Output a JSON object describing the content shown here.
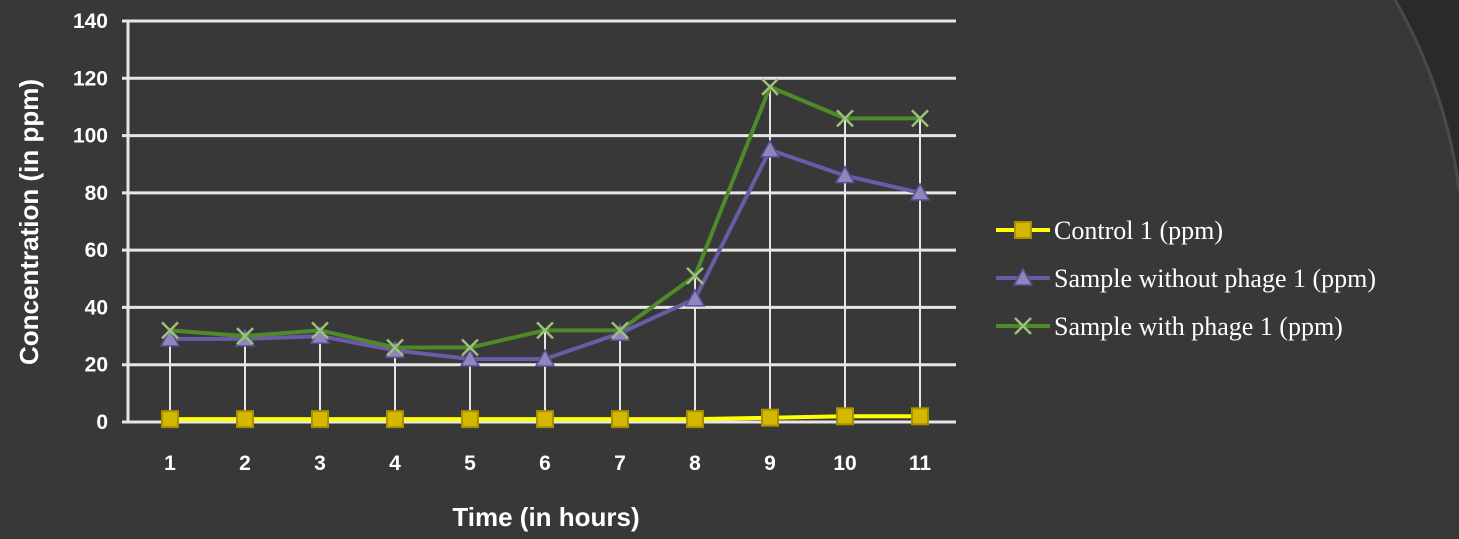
{
  "colors": {
    "background": "#383838",
    "gridline": "#e6e6e6",
    "control": "#ffff00",
    "control_marker": "#d4b800",
    "without_phage": "#6b5aa6",
    "without_phage_marker": "#8f86be",
    "with_phage": "#4f8a2a",
    "with_phage_marker": "#9cc27a",
    "text": "#ffffff"
  },
  "chart_data": {
    "type": "line",
    "xlabel": "Time (in hours)",
    "ylabel": "Concentration (in ppm)",
    "ylim": [
      0,
      140
    ],
    "y_ticks": [
      "0",
      "20",
      "40",
      "60",
      "80",
      "100",
      "120",
      "140"
    ],
    "categories": [
      "1",
      "2",
      "3",
      "4",
      "5",
      "6",
      "7",
      "8",
      "9",
      "10",
      "11"
    ],
    "grid": true,
    "legend_position": "right",
    "series": [
      {
        "name": "Control 1 (ppm)",
        "marker": "square",
        "values": [
          1,
          1,
          1,
          1,
          1,
          1,
          1,
          1,
          1.5,
          2,
          2
        ]
      },
      {
        "name": "Sample without phage 1 (ppm)",
        "marker": "triangle",
        "values": [
          29,
          29,
          30,
          25,
          22,
          22,
          31,
          43,
          95,
          86,
          80
        ]
      },
      {
        "name": "Sample with phage 1 (ppm)",
        "marker": "x",
        "values": [
          32,
          30,
          32,
          26,
          26,
          32,
          32,
          51,
          117,
          106,
          106
        ]
      }
    ]
  }
}
